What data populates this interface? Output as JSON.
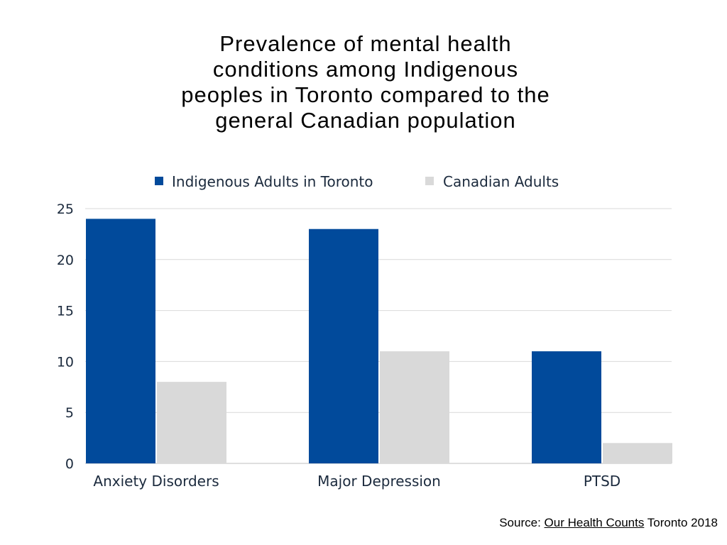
{
  "chart_data": {
    "type": "bar",
    "title_lines": [
      "Prevalence of mental health",
      "conditions among Indigenous",
      "peoples in Toronto compared to the",
      "general Canadian population"
    ],
    "categories": [
      "Anxiety Disorders",
      "Major Depression",
      "PTSD"
    ],
    "series": [
      {
        "name": "Indigenous Adults in Toronto",
        "color": "#014a9b",
        "values": [
          24,
          23,
          11
        ]
      },
      {
        "name": "Canadian Adults",
        "color": "#d9d9d9",
        "values": [
          8,
          11,
          2
        ]
      }
    ],
    "yticks": [
      0,
      5,
      10,
      15,
      20,
      25
    ],
    "ylim": [
      0,
      25
    ],
    "grid": true,
    "legend": "top",
    "xlabel": "",
    "ylabel": ""
  },
  "source": {
    "prefix": "Source: ",
    "link": "Our Health Counts",
    "suffix": " Toronto 2018"
  }
}
